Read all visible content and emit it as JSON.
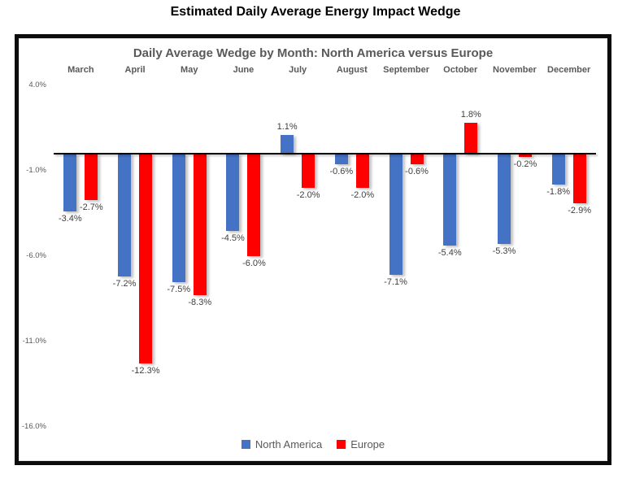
{
  "page_title": "Estimated Daily Average Energy Impact Wedge",
  "chart_data": {
    "type": "bar",
    "title": "Daily Average Wedge by Month: North America versus Europe",
    "categories": [
      "March",
      "April",
      "May",
      "June",
      "July",
      "August",
      "September",
      "October",
      "November",
      "December"
    ],
    "series": [
      {
        "name": "North America",
        "color": "#4472C4",
        "values": [
          -3.4,
          -7.2,
          -7.5,
          -4.5,
          1.1,
          -0.6,
          -7.1,
          -5.4,
          -5.3,
          -1.8
        ]
      },
      {
        "name": "Europe",
        "color": "#FF0000",
        "values": [
          -2.7,
          -12.3,
          -8.3,
          -6.0,
          -2.0,
          -2.0,
          -0.6,
          1.8,
          -0.2,
          -2.9
        ]
      }
    ],
    "ylabel": "",
    "xlabel": "",
    "ylim": [
      -16.0,
      4.0
    ],
    "yticks": [
      4.0,
      -1.0,
      -6.0,
      -11.0,
      -16.0
    ],
    "ytick_labels": [
      "4.0%",
      "-1.0%",
      "-6.0%",
      "-11.0%",
      "-16.0%"
    ],
    "data_label_format": "0.0%",
    "legend_position": "bottom",
    "grid": false
  }
}
